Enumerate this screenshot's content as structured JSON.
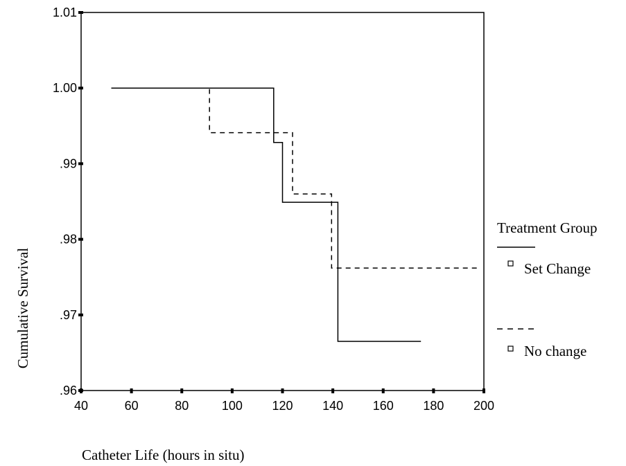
{
  "chart_data": {
    "type": "line",
    "xlabel": "Catheter Life (hours in situ)",
    "ylabel": "Cumulative Survival",
    "xlim": [
      40,
      200
    ],
    "ylim": [
      0.96,
      1.01
    ],
    "x_ticks": [
      40,
      60,
      80,
      100,
      120,
      140,
      160,
      180,
      200
    ],
    "x_tick_labels": [
      "40",
      "60",
      "80",
      "100",
      "120",
      "140",
      "160",
      "180",
      "200"
    ],
    "y_ticks": [
      0.96,
      0.97,
      0.98,
      0.99,
      1.0,
      1.01
    ],
    "y_tick_labels": [
      ".96",
      ".97",
      ".98",
      ".99",
      "1.00",
      "1.01"
    ],
    "grid": false,
    "legend": {
      "title": "Treatment Group",
      "placement": "right"
    },
    "series": [
      {
        "name": "Set Change",
        "line_style": "solid",
        "x": [
          52,
          116.5,
          116.5,
          120,
          120,
          142,
          142,
          175
        ],
        "y": [
          1.0,
          1.0,
          0.9928,
          0.9928,
          0.9849,
          0.9849,
          0.9665,
          0.9665
        ]
      },
      {
        "name": "No change",
        "line_style": "dashed",
        "x": [
          52,
          91,
          91,
          124,
          124,
          139.5,
          139.5,
          198
        ],
        "y": [
          1.0,
          1.0,
          0.9941,
          0.9941,
          0.986,
          0.986,
          0.9762,
          0.9762
        ]
      }
    ]
  }
}
